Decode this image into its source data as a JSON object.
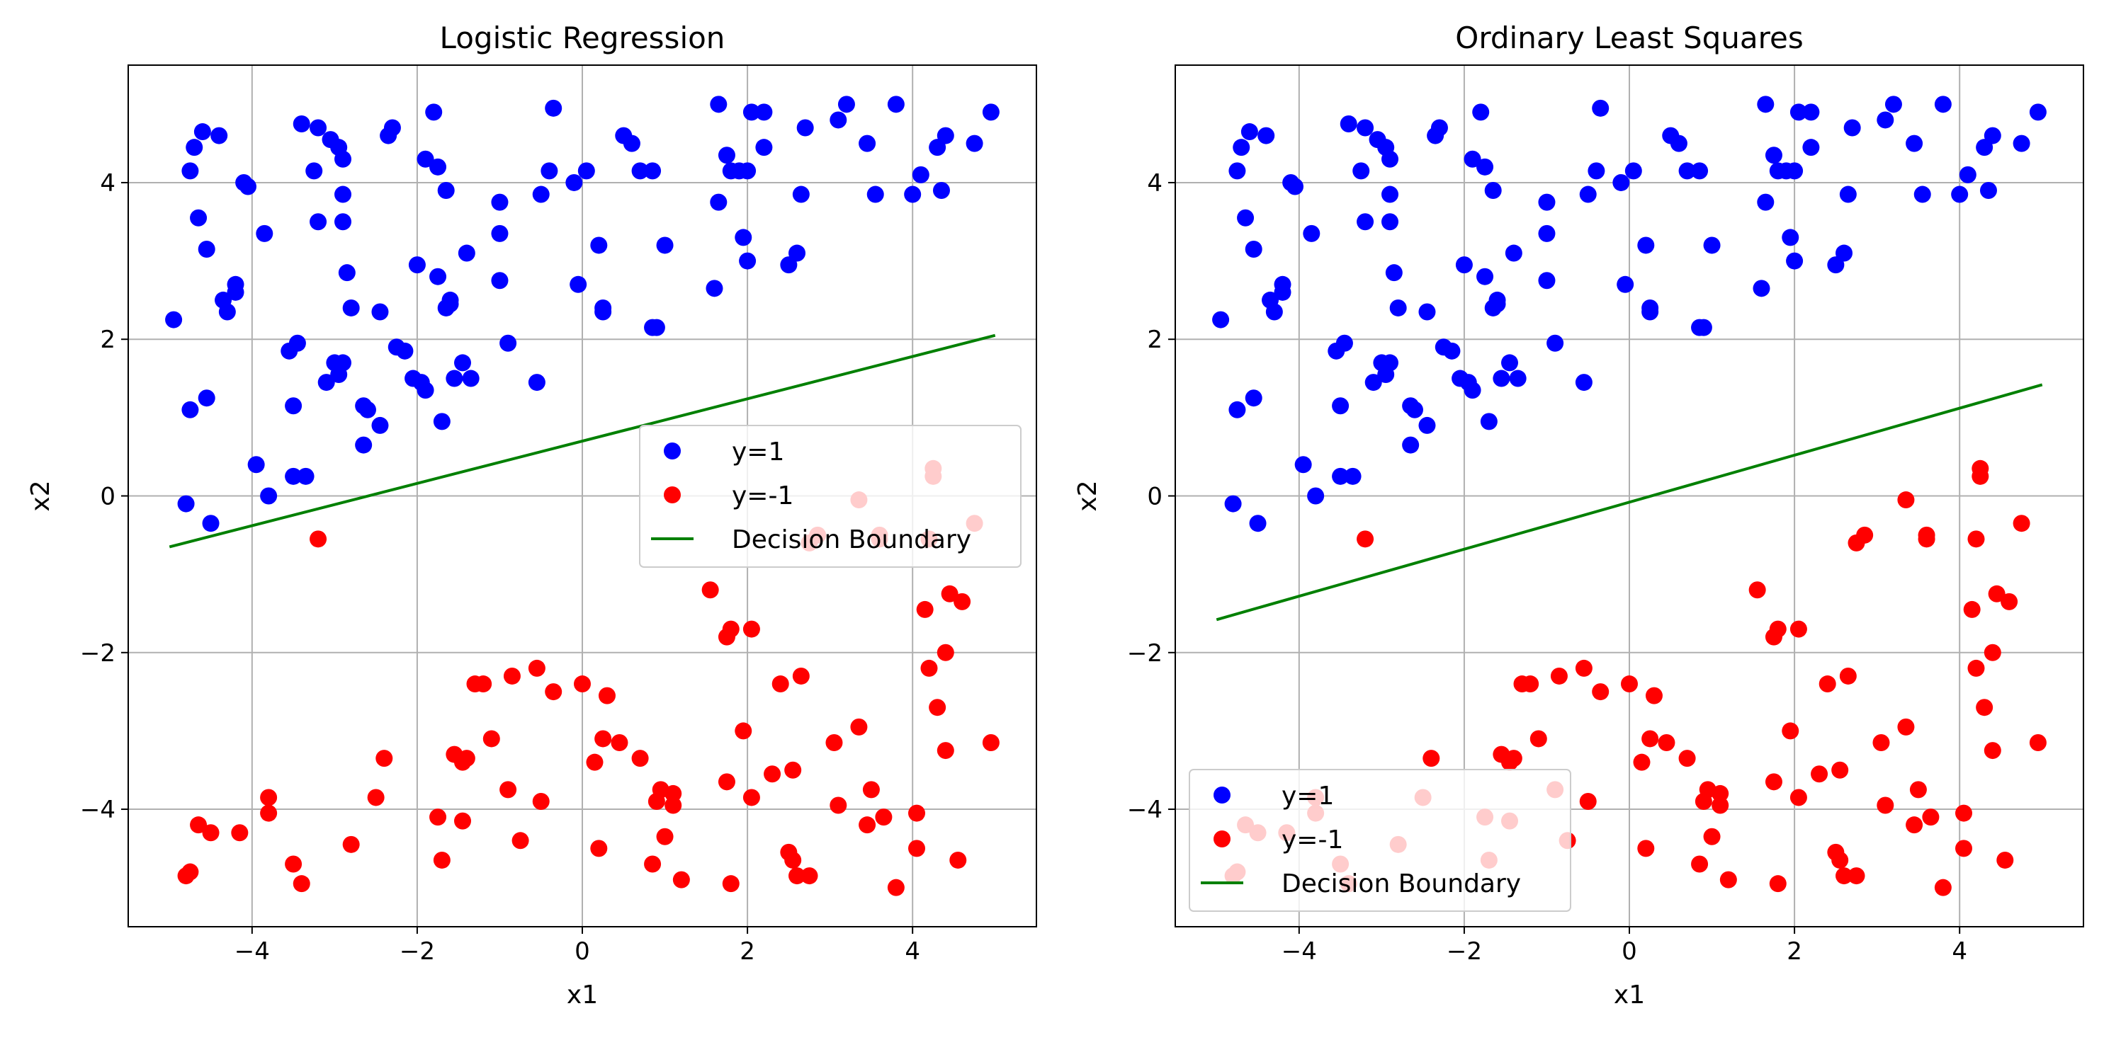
{
  "colors": {
    "class_pos": "#0000ff",
    "class_neg": "#ff0000",
    "boundary": "#008000",
    "grid": "#b0b0b0"
  },
  "chart_data": [
    {
      "type": "scatter",
      "title": "Logistic Regression",
      "xlabel": "x1",
      "ylabel": "x2",
      "xlim": [
        -5.5,
        5.5
      ],
      "ylim": [
        -5.5,
        5.5
      ],
      "xticks": [
        -4,
        -2,
        0,
        2,
        4
      ],
      "yticks": [
        -4,
        -2,
        0,
        2,
        4
      ],
      "xtick_labels": [
        "−4",
        "−2",
        "0",
        "2",
        "4"
      ],
      "ytick_labels": [
        "−4",
        "−2",
        "0",
        "2",
        "4"
      ],
      "grid": true,
      "legend_position": "center-right",
      "series": [
        {
          "name": "y=1",
          "kind": "points",
          "color": "#0000ff",
          "points": [
            [
              -4.95,
              2.25
            ],
            [
              -4.8,
              -0.1
            ],
            [
              -4.75,
              4.15
            ],
            [
              -4.75,
              1.1
            ],
            [
              -4.7,
              4.45
            ],
            [
              -4.65,
              3.55
            ],
            [
              -4.6,
              4.65
            ],
            [
              -4.55,
              3.15
            ],
            [
              -4.55,
              1.25
            ],
            [
              -4.5,
              -0.35
            ],
            [
              -4.4,
              4.6
            ],
            [
              -4.35,
              2.5
            ],
            [
              -4.3,
              2.35
            ],
            [
              -4.2,
              2.6
            ],
            [
              -4.2,
              2.7
            ],
            [
              -4.1,
              4.0
            ],
            [
              -4.05,
              3.95
            ],
            [
              -3.95,
              0.4
            ],
            [
              -3.85,
              3.35
            ],
            [
              -3.8,
              0.0
            ],
            [
              -3.55,
              1.85
            ],
            [
              -3.5,
              1.15
            ],
            [
              -3.5,
              0.25
            ],
            [
              -3.45,
              1.95
            ],
            [
              -3.4,
              4.75
            ],
            [
              -3.35,
              0.25
            ],
            [
              -3.25,
              4.15
            ],
            [
              -3.2,
              3.5
            ],
            [
              -3.2,
              4.7
            ],
            [
              -3.1,
              1.45
            ],
            [
              -3.05,
              4.55
            ],
            [
              -3.0,
              1.7
            ],
            [
              -2.95,
              4.45
            ],
            [
              -2.95,
              1.55
            ],
            [
              -2.9,
              4.3
            ],
            [
              -2.9,
              1.7
            ],
            [
              -2.9,
              3.85
            ],
            [
              -2.9,
              3.5
            ],
            [
              -2.85,
              2.85
            ],
            [
              -2.8,
              2.4
            ],
            [
              -2.65,
              1.15
            ],
            [
              -2.65,
              0.65
            ],
            [
              -2.6,
              1.1
            ],
            [
              -2.45,
              2.35
            ],
            [
              -2.45,
              0.9
            ],
            [
              -2.35,
              4.6
            ],
            [
              -2.3,
              4.7
            ],
            [
              -2.25,
              1.9
            ],
            [
              -2.15,
              1.85
            ],
            [
              -2.05,
              1.5
            ],
            [
              -2.0,
              2.95
            ],
            [
              -1.95,
              1.45
            ],
            [
              -1.9,
              4.3
            ],
            [
              -1.9,
              1.35
            ],
            [
              -1.8,
              4.9
            ],
            [
              -1.75,
              2.8
            ],
            [
              -1.75,
              4.2
            ],
            [
              -1.7,
              0.95
            ],
            [
              -1.65,
              3.9
            ],
            [
              -1.65,
              2.4
            ],
            [
              -1.6,
              2.5
            ],
            [
              -1.6,
              2.45
            ],
            [
              -1.55,
              1.5
            ],
            [
              -1.45,
              1.7
            ],
            [
              -1.4,
              3.1
            ],
            [
              -1.35,
              1.5
            ],
            [
              -1.0,
              3.75
            ],
            [
              -1.0,
              3.35
            ],
            [
              -1.0,
              2.75
            ],
            [
              -0.9,
              1.95
            ],
            [
              -0.55,
              1.45
            ],
            [
              -0.5,
              3.85
            ],
            [
              -0.4,
              4.15
            ],
            [
              -0.35,
              4.95
            ],
            [
              -0.1,
              4.0
            ],
            [
              -0.05,
              2.7
            ],
            [
              0.05,
              4.15
            ],
            [
              0.2,
              3.2
            ],
            [
              0.25,
              2.35
            ],
            [
              0.25,
              2.4
            ],
            [
              0.5,
              4.6
            ],
            [
              0.6,
              4.5
            ],
            [
              0.7,
              4.15
            ],
            [
              0.85,
              4.15
            ],
            [
              0.9,
              2.15
            ],
            [
              0.85,
              2.15
            ],
            [
              1.0,
              3.2
            ],
            [
              1.65,
              5.0
            ],
            [
              1.6,
              2.65
            ],
            [
              1.65,
              3.75
            ],
            [
              1.75,
              4.35
            ],
            [
              1.8,
              4.15
            ],
            [
              1.9,
              4.15
            ],
            [
              1.95,
              3.3
            ],
            [
              2.0,
              3.0
            ],
            [
              2.0,
              4.15
            ],
            [
              2.05,
              4.9
            ],
            [
              2.2,
              4.9
            ],
            [
              2.2,
              4.45
            ],
            [
              2.5,
              2.95
            ],
            [
              2.6,
              3.1
            ],
            [
              2.65,
              3.85
            ],
            [
              2.7,
              4.7
            ],
            [
              3.1,
              4.8
            ],
            [
              3.2,
              5.0
            ],
            [
              3.45,
              4.5
            ],
            [
              3.55,
              3.85
            ],
            [
              3.8,
              5.0
            ],
            [
              4.0,
              3.85
            ],
            [
              4.1,
              4.1
            ],
            [
              4.3,
              4.45
            ],
            [
              4.35,
              3.9
            ],
            [
              4.4,
              4.6
            ],
            [
              4.75,
              4.5
            ],
            [
              4.95,
              4.9
            ]
          ]
        },
        {
          "name": "y=-1",
          "kind": "points",
          "color": "#ff0000",
          "points": [
            [
              -4.8,
              -4.85
            ],
            [
              -4.75,
              -4.8
            ],
            [
              -4.65,
              -4.2
            ],
            [
              -4.5,
              -4.3
            ],
            [
              -4.15,
              -4.3
            ],
            [
              -3.8,
              -3.85
            ],
            [
              -3.8,
              -4.05
            ],
            [
              -3.5,
              -4.7
            ],
            [
              -3.4,
              -4.95
            ],
            [
              -3.2,
              -0.55
            ],
            [
              -2.8,
              -4.45
            ],
            [
              -2.5,
              -3.85
            ],
            [
              -2.4,
              -3.35
            ],
            [
              -1.75,
              -4.1
            ],
            [
              -1.7,
              -4.65
            ],
            [
              -1.55,
              -3.3
            ],
            [
              -1.45,
              -4.15
            ],
            [
              -1.45,
              -3.4
            ],
            [
              -1.4,
              -3.35
            ],
            [
              -1.3,
              -2.4
            ],
            [
              -1.2,
              -2.4
            ],
            [
              -1.1,
              -3.1
            ],
            [
              -0.9,
              -3.75
            ],
            [
              -0.85,
              -2.3
            ],
            [
              -0.75,
              -4.4
            ],
            [
              -0.55,
              -2.2
            ],
            [
              -0.5,
              -3.9
            ],
            [
              -0.35,
              -2.5
            ],
            [
              0.0,
              -2.4
            ],
            [
              0.15,
              -3.4
            ],
            [
              0.2,
              -4.5
            ],
            [
              0.25,
              -3.1
            ],
            [
              0.3,
              -2.55
            ],
            [
              0.45,
              -3.15
            ],
            [
              0.7,
              -3.35
            ],
            [
              0.85,
              -4.7
            ],
            [
              0.9,
              -3.9
            ],
            [
              0.95,
              -3.75
            ],
            [
              1.0,
              -4.35
            ],
            [
              1.1,
              -3.8
            ],
            [
              1.1,
              -3.95
            ],
            [
              1.2,
              -4.9
            ],
            [
              1.55,
              -1.2
            ],
            [
              1.75,
              -1.8
            ],
            [
              1.75,
              -3.65
            ],
            [
              1.8,
              -1.7
            ],
            [
              1.8,
              -4.95
            ],
            [
              1.95,
              -3.0
            ],
            [
              2.05,
              -1.7
            ],
            [
              2.05,
              -3.85
            ],
            [
              2.3,
              -3.55
            ],
            [
              2.4,
              -2.4
            ],
            [
              2.55,
              -3.5
            ],
            [
              2.5,
              -4.55
            ],
            [
              2.55,
              -4.65
            ],
            [
              2.6,
              -4.85
            ],
            [
              2.65,
              -2.3
            ],
            [
              2.75,
              -0.6
            ],
            [
              2.75,
              -4.85
            ],
            [
              2.85,
              -0.5
            ],
            [
              3.05,
              -3.15
            ],
            [
              3.1,
              -3.95
            ],
            [
              3.35,
              -0.05
            ],
            [
              3.35,
              -2.95
            ],
            [
              3.45,
              -4.2
            ],
            [
              3.5,
              -3.75
            ],
            [
              3.6,
              -0.5
            ],
            [
              3.6,
              -0.55
            ],
            [
              3.65,
              -4.1
            ],
            [
              3.8,
              -5.0
            ],
            [
              4.05,
              -4.05
            ],
            [
              4.05,
              -4.5
            ],
            [
              4.15,
              -1.45
            ],
            [
              4.2,
              -0.55
            ],
            [
              4.2,
              -2.2
            ],
            [
              4.25,
              0.25
            ],
            [
              4.25,
              0.35
            ],
            [
              4.3,
              -2.7
            ],
            [
              4.4,
              -2.0
            ],
            [
              4.4,
              -3.25
            ],
            [
              4.45,
              -1.25
            ],
            [
              4.55,
              -4.65
            ],
            [
              4.6,
              -1.35
            ],
            [
              4.75,
              -0.35
            ],
            [
              4.95,
              -3.15
            ]
          ]
        },
        {
          "name": "Decision Boundary",
          "kind": "line",
          "color": "#008000",
          "points": [
            [
              -5.0,
              -0.65
            ],
            [
              5.0,
              2.05
            ]
          ]
        }
      ]
    },
    {
      "type": "scatter",
      "title": "Ordinary Least Squares",
      "xlabel": "x1",
      "ylabel": "x2",
      "xlim": [
        -5.5,
        5.5
      ],
      "ylim": [
        -5.5,
        5.5
      ],
      "xticks": [
        -4,
        -2,
        0,
        2,
        4
      ],
      "yticks": [
        -4,
        -2,
        0,
        2,
        4
      ],
      "xtick_labels": [
        "−4",
        "−2",
        "0",
        "2",
        "4"
      ],
      "ytick_labels": [
        "−4",
        "−2",
        "0",
        "2",
        "4"
      ],
      "grid": true,
      "legend_position": "lower-left",
      "series": [
        {
          "name": "y=1",
          "kind": "points",
          "color": "#0000ff",
          "same_points_as": 0
        },
        {
          "name": "y=-1",
          "kind": "points",
          "color": "#ff0000",
          "same_points_as": 0
        },
        {
          "name": "Decision Boundary",
          "kind": "line",
          "color": "#008000",
          "points": [
            [
              -5.0,
              -1.58
            ],
            [
              5.0,
              1.42
            ]
          ]
        }
      ]
    }
  ]
}
